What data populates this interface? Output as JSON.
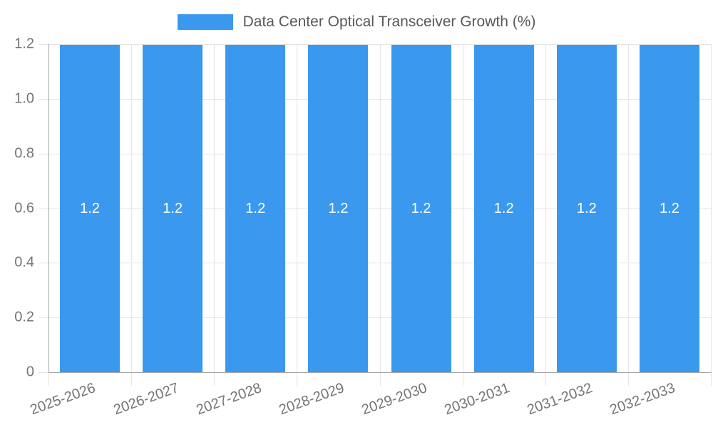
{
  "chart_data": {
    "type": "bar",
    "title": "",
    "legend": "Data Center Optical Transceiver Growth (%)",
    "legend_position": "top",
    "categories": [
      "2025-2026",
      "2026-2027",
      "2027-2028",
      "2028-2029",
      "2029-2030",
      "2030-2031",
      "2031-2032",
      "2032-2033"
    ],
    "values": [
      1.2,
      1.2,
      1.2,
      1.2,
      1.2,
      1.2,
      1.2,
      1.2
    ],
    "value_labels": [
      "1.2",
      "1.2",
      "1.2",
      "1.2",
      "1.2",
      "1.2",
      "1.2",
      "1.2"
    ],
    "y_ticks": [
      "0",
      "0.2",
      "0.4",
      "0.6",
      "0.8",
      "1.0",
      "1.2"
    ],
    "ylim": [
      0,
      1.2
    ],
    "xlabel": "",
    "ylabel": "",
    "grid": true,
    "bar_color": "#3A99EE",
    "bar_label_color": "#ffffff"
  },
  "style": {
    "axis_color": "#a6a6a6",
    "grid_color": "#e4e4e4",
    "tick_text_color": "#757575",
    "legend_text_color": "#595959",
    "background_color": "#ffffff"
  }
}
